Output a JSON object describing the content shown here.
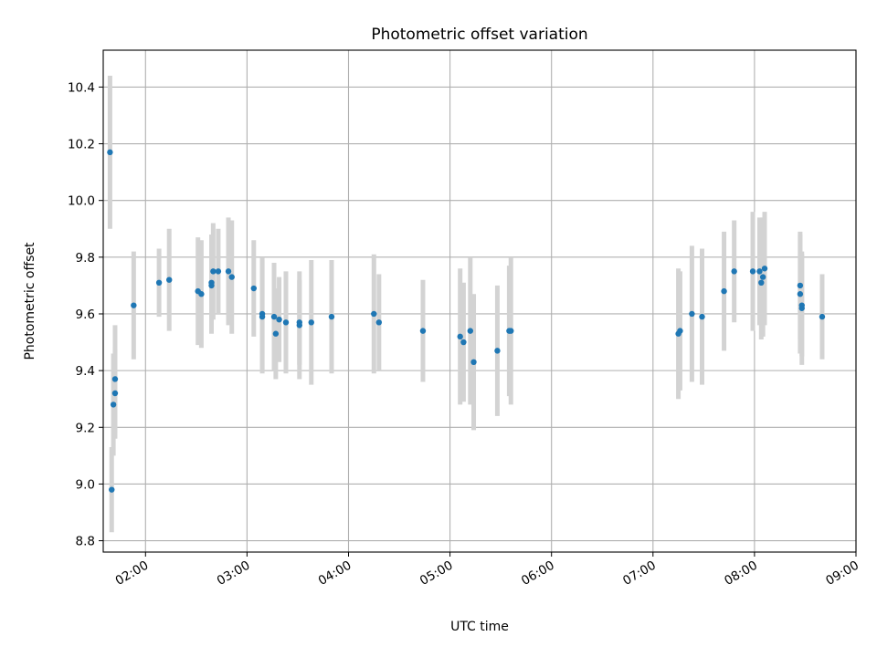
{
  "chart_data": {
    "type": "scatter",
    "title": "Photometric offset variation",
    "xlabel": "UTC time",
    "ylabel": "Photometric offset",
    "x_axis_type": "time",
    "xlim": [
      "01:35",
      "09:00"
    ],
    "ylim": [
      8.76,
      10.53
    ],
    "xticks": [
      "02:00",
      "03:00",
      "04:00",
      "05:00",
      "06:00",
      "07:00",
      "08:00",
      "09:00"
    ],
    "yticks": [
      "8.8",
      "9.0",
      "9.2",
      "9.4",
      "9.6",
      "9.8",
      "10.0",
      "10.2",
      "10.4"
    ],
    "grid": true,
    "marker_color": "#1f77b4",
    "errorbar_color": "#d3d3d3",
    "series": [
      {
        "x": [
          "01:39",
          "01:40",
          "01:41",
          "01:42",
          "01:42",
          "01:53",
          "02:08",
          "02:14",
          "02:31",
          "02:33",
          "02:39",
          "02:39",
          "02:40",
          "02:43",
          "02:49",
          "02:51",
          "03:04",
          "03:09",
          "03:09",
          "03:16",
          "03:17",
          "03:19",
          "03:23",
          "03:31",
          "03:31",
          "03:38",
          "03:50",
          "04:15",
          "04:18",
          "04:44",
          "05:06",
          "05:08",
          "05:12",
          "05:14",
          "05:28",
          "05:35",
          "05:36",
          "07:15",
          "07:16",
          "07:23",
          "07:29",
          "07:42",
          "07:48",
          "07:59",
          "08:03",
          "08:04",
          "08:05",
          "08:06",
          "08:27",
          "08:27",
          "08:28",
          "08:28",
          "08:40"
        ],
        "y": [
          10.17,
          8.98,
          9.28,
          9.32,
          9.37,
          9.63,
          9.71,
          9.72,
          9.68,
          9.67,
          9.7,
          9.71,
          9.75,
          9.75,
          9.75,
          9.73,
          9.69,
          9.6,
          9.59,
          9.59,
          9.53,
          9.58,
          9.57,
          9.57,
          9.56,
          9.57,
          9.59,
          9.6,
          9.57,
          9.54,
          9.52,
          9.5,
          9.54,
          9.43,
          9.47,
          9.54,
          9.54,
          9.53,
          9.54,
          9.6,
          9.59,
          9.68,
          9.75,
          9.75,
          9.75,
          9.71,
          9.73,
          9.76,
          9.7,
          9.67,
          9.63,
          9.62,
          9.59
        ],
        "yerr": [
          0.27,
          0.15,
          0.18,
          0.16,
          0.19,
          0.19,
          0.12,
          0.18,
          0.19,
          0.19,
          0.17,
          0.17,
          0.17,
          0.15,
          0.19,
          0.2,
          0.17,
          0.2,
          0.2,
          0.19,
          0.16,
          0.15,
          0.18,
          0.15,
          0.19,
          0.22,
          0.2,
          0.21,
          0.17,
          0.18,
          0.24,
          0.21,
          0.26,
          0.24,
          0.23,
          0.23,
          0.26,
          0.23,
          0.21,
          0.24,
          0.24,
          0.21,
          0.18,
          0.21,
          0.19,
          0.2,
          0.21,
          0.2,
          0.19,
          0.21,
          0.18,
          0.2,
          0.15
        ]
      }
    ]
  }
}
